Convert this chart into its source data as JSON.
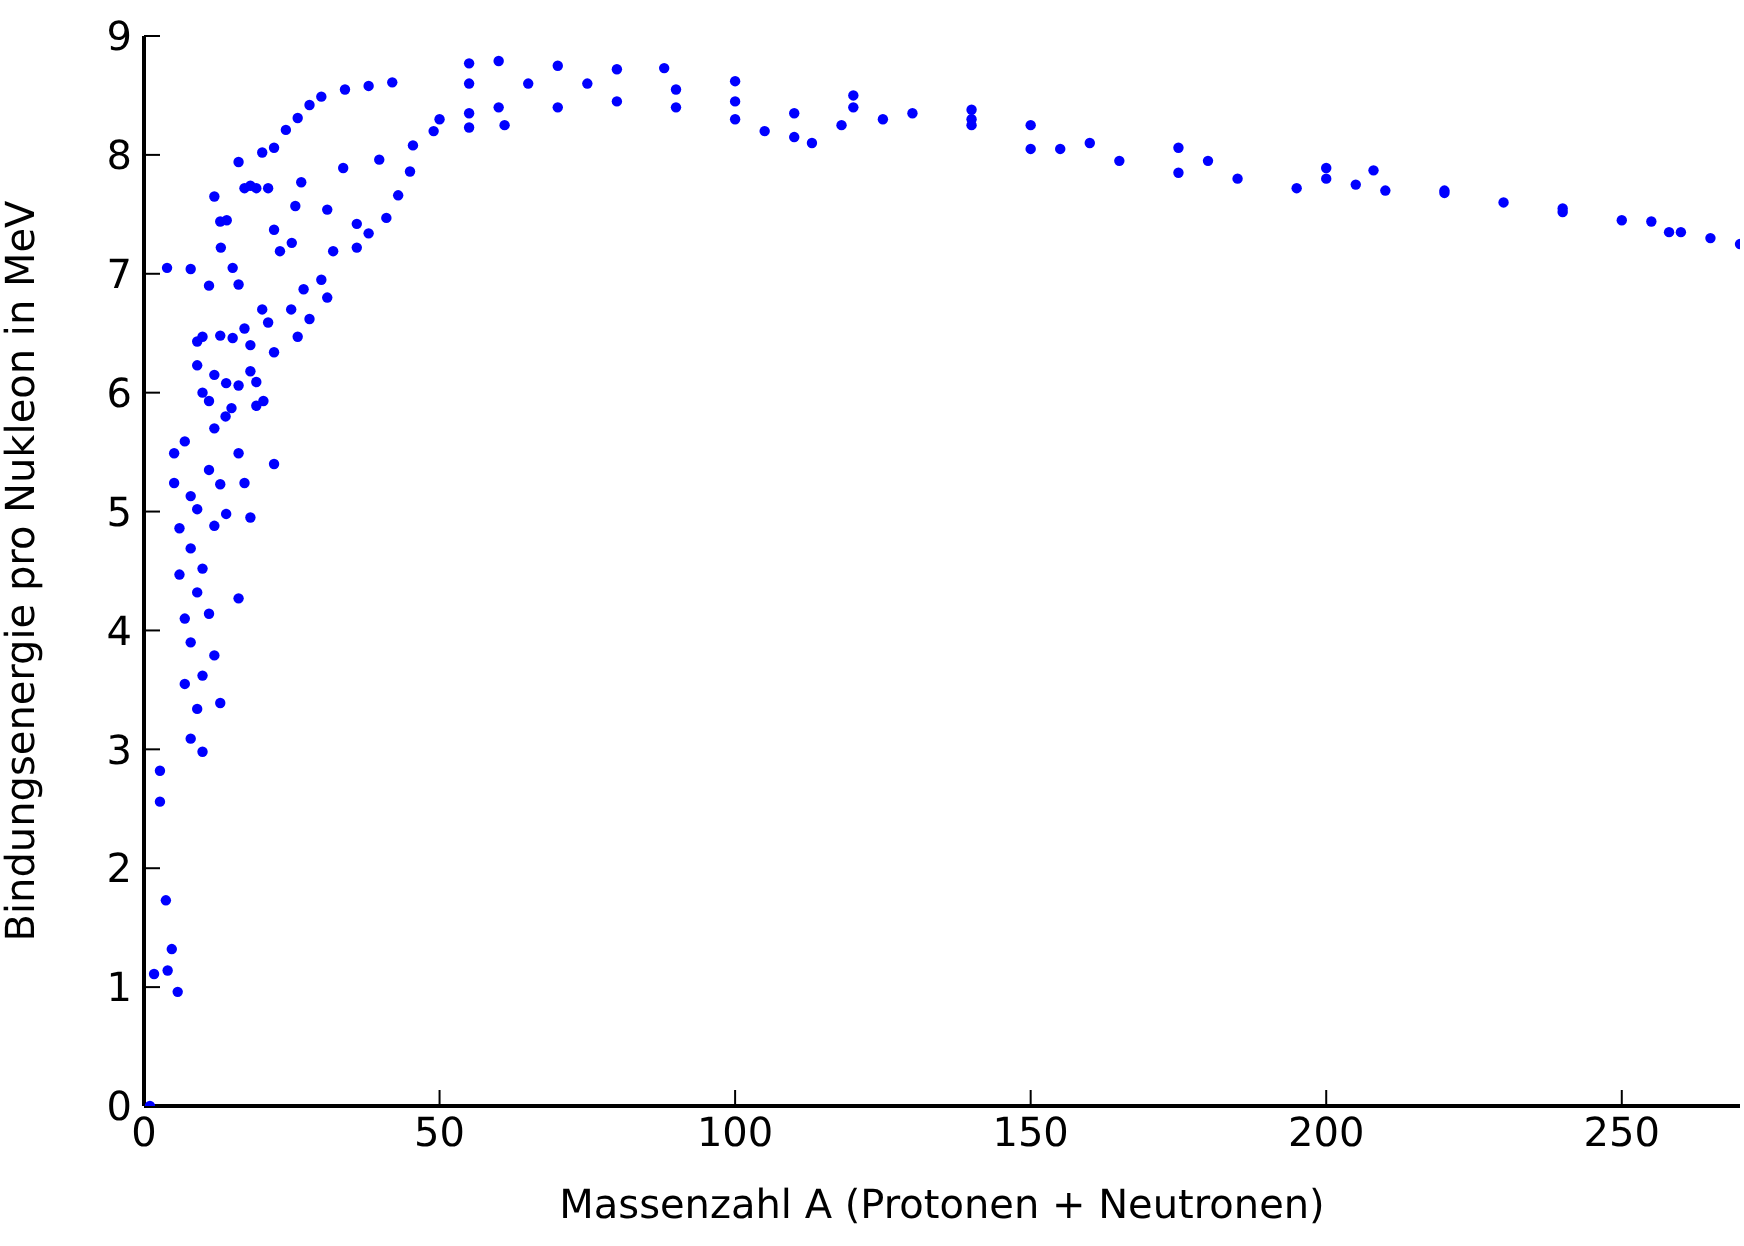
{
  "chart_data": {
    "type": "scatter",
    "xlabel": "Massenzahl A (Protonen + Neutronen)",
    "ylabel": "Bindungsenergie pro Nukleon in MeV",
    "color": "#0000ff",
    "marker": "circle",
    "grid": false,
    "xlim": [
      0,
      270
    ],
    "ylim": [
      0,
      9
    ],
    "xticks": [
      0,
      50,
      100,
      150,
      200,
      250
    ],
    "yticks": [
      0,
      1,
      2,
      3,
      4,
      5,
      6,
      7,
      8,
      9
    ],
    "x": [
      1,
      1.7,
      2.7,
      2.7,
      3.7,
      4,
      4.7,
      5.7,
      6.9,
      5.1,
      5.1,
      6,
      6,
      6.9,
      6.9,
      7.9,
      9.9,
      9,
      9.9,
      7.9,
      7.9,
      9,
      7.9,
      11,
      9.9,
      9,
      11.9,
      12.9,
      11.9,
      11,
      12.9,
      13.9,
      16,
      17,
      18,
      16,
      22,
      11.9,
      13.8,
      14.8,
      9.9,
      11,
      9,
      11.9,
      13.9,
      16,
      18,
      19,
      19,
      20.2,
      22,
      9,
      9.9,
      12.9,
      15,
      17,
      18,
      21,
      20,
      24.9,
      28,
      26,
      31,
      11,
      3.9,
      7.9,
      11.9,
      12.9,
      13,
      14,
      15,
      16,
      16,
      17,
      18,
      19,
      21,
      20,
      22,
      24,
      26,
      28,
      30,
      34,
      38,
      42,
      22,
      25,
      27,
      30,
      32,
      36,
      38,
      41,
      43,
      45,
      36,
      31,
      25.6,
      23,
      26.6,
      33.7,
      39.8,
      45.5,
      49,
      55,
      61,
      55,
      60,
      70,
      80,
      88,
      100,
      120,
      140,
      150,
      175,
      200,
      208,
      220,
      240,
      255,
      260,
      265,
      270,
      50,
      55,
      60,
      70,
      80,
      90,
      100,
      105,
      110,
      113,
      118,
      125,
      140,
      150,
      155,
      165,
      175,
      185,
      195,
      205,
      210,
      220,
      240,
      250,
      258,
      55,
      65,
      75,
      90,
      100,
      110,
      120,
      130,
      140,
      160,
      180,
      200,
      230
    ],
    "values": [
      0,
      1.11,
      2.56,
      2.82,
      1.73,
      1.14,
      1.32,
      0.96,
      5.59,
      5.49,
      5.24,
      4.86,
      4.47,
      4.1,
      3.55,
      3.09,
      2.98,
      3.34,
      3.62,
      3.9,
      4.69,
      5.02,
      5.13,
      4.14,
      4.52,
      4.32,
      3.79,
      3.39,
      4.88,
      5.35,
      5.23,
      4.98,
      4.27,
      5.24,
      4.95,
      5.49,
      5.4,
      5.7,
      5.8,
      5.87,
      6,
      5.93,
      6.23,
      6.15,
      6.08,
      6.06,
      6.18,
      6.09,
      5.89,
      5.93,
      6.34,
      6.43,
      6.47,
      6.48,
      6.46,
      6.54,
      6.4,
      6.59,
      6.7,
      6.7,
      6.62,
      6.47,
      6.8,
      6.9,
      7.05,
      7.04,
      7.65,
      7.44,
      7.22,
      7.45,
      7.05,
      6.91,
      7.94,
      7.72,
      7.74,
      7.72,
      7.72,
      8.02,
      8.06,
      8.21,
      8.31,
      8.42,
      8.49,
      8.55,
      8.58,
      8.61,
      7.37,
      7.26,
      6.87,
      6.95,
      7.19,
      7.22,
      7.34,
      7.47,
      7.66,
      7.86,
      7.42,
      7.54,
      7.57,
      7.19,
      7.77,
      7.89,
      7.96,
      8.08,
      8.2,
      8.23,
      8.25,
      8.77,
      8.79,
      8.75,
      8.72,
      8.73,
      8.62,
      8.5,
      8.38,
      8.25,
      8.06,
      7.89,
      7.87,
      7.7,
      7.55,
      7.44,
      7.35,
      7.3,
      7.25,
      8.3,
      8.35,
      8.4,
      8.4,
      8.45,
      8.4,
      8.3,
      8.2,
      8.15,
      8.1,
      8.25,
      8.3,
      8.25,
      8.05,
      8.05,
      7.95,
      7.85,
      7.8,
      7.72,
      7.75,
      7.7,
      7.68,
      7.52,
      7.45,
      7.35,
      8.6,
      8.6,
      8.6,
      8.55,
      8.45,
      8.35,
      8.4,
      8.35,
      8.3,
      8.1,
      7.95,
      7.8,
      7.6
    ]
  }
}
